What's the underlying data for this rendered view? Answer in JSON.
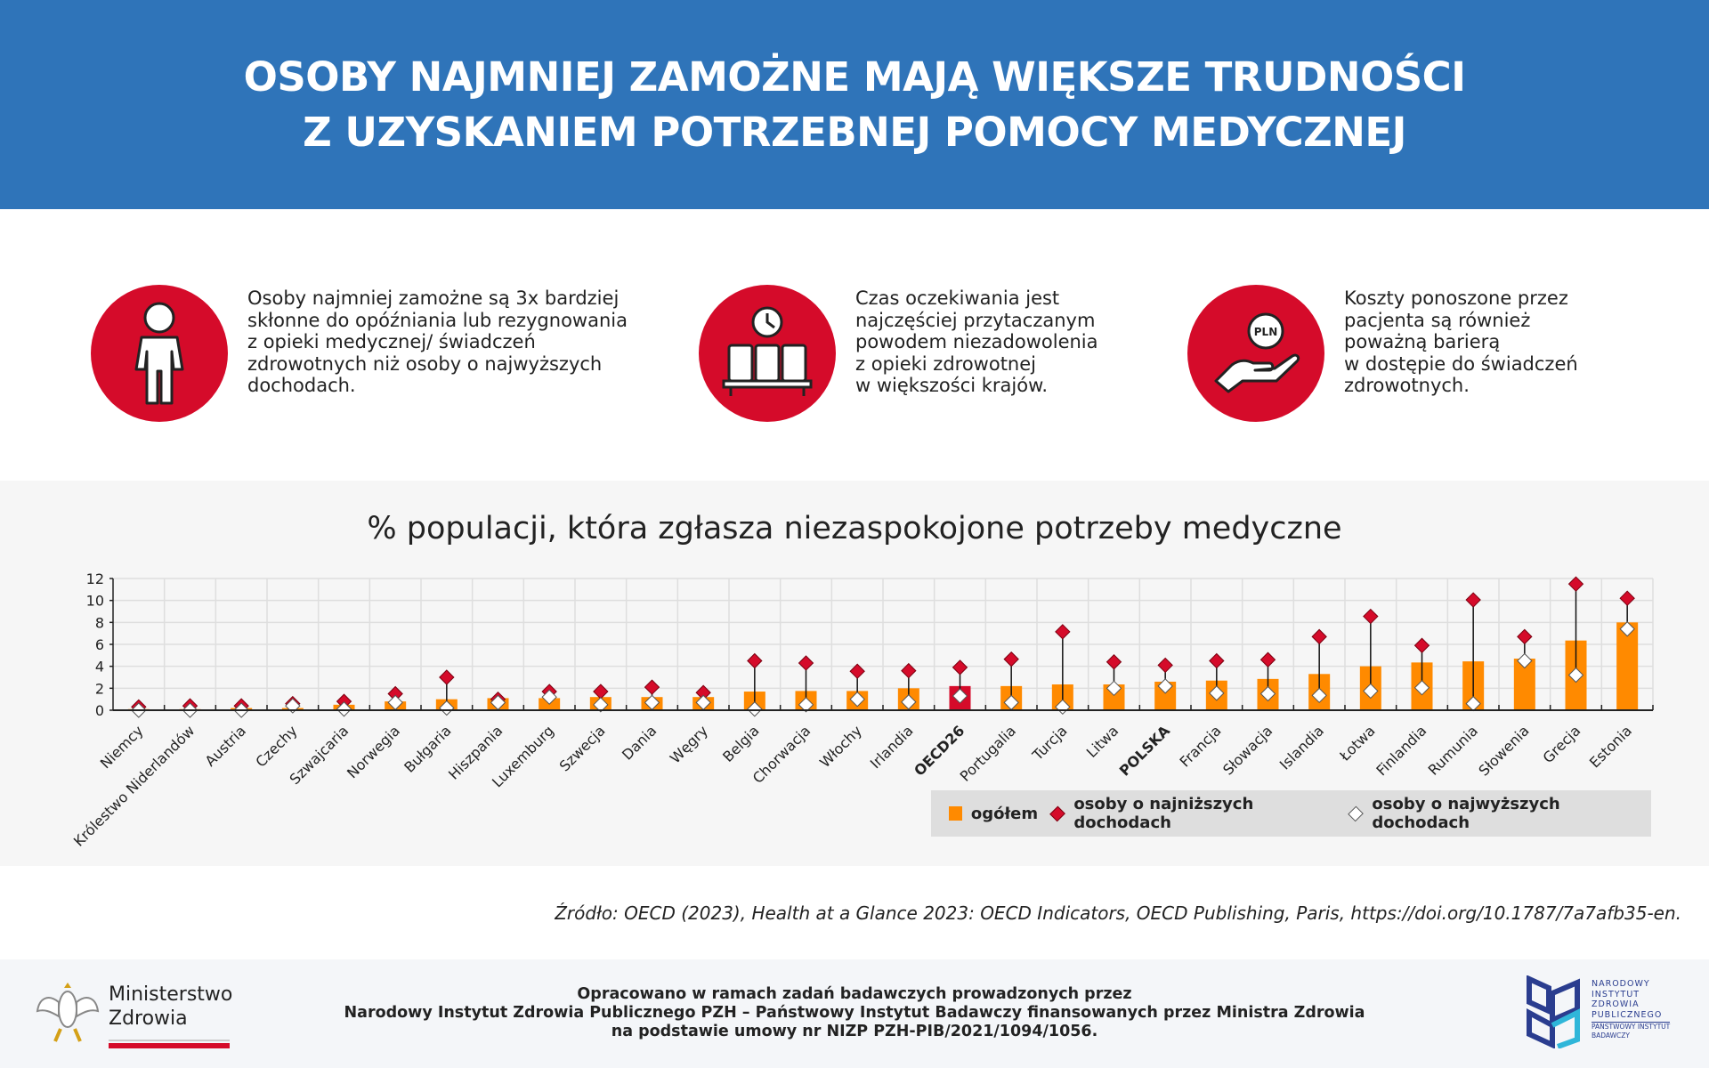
{
  "header": {
    "title_line1": "OSOBY NAJMNIEJ ZAMOŻNE MAJĄ WIĘKSZE TRUDNOŚCI",
    "title_line2": "Z UZYSKANIEM POTRZEBNEJ POMOCY MEDYCZNEJ"
  },
  "facts": [
    {
      "icon": "person-icon",
      "lines": [
        "Osoby najmniej zamożne są 3x bardziej",
        "skłonne do opóźniania lub rezygnowania",
        "z opieki medycznej/ świadczeń",
        "zdrowotnych niż osoby o najwyższych",
        "dochodach."
      ]
    },
    {
      "icon": "waiting-room-clock-icon",
      "lines": [
        "Czas oczekiwania jest",
        "najczęściej przytaczanym",
        "powodem niezadowolenia",
        "z opieki zdrowotnej",
        "w większości krajów."
      ]
    },
    {
      "icon": "hand-coin-icon",
      "coin_label": "PLN",
      "lines": [
        "Koszty ponoszone przez",
        "pacjenta są również",
        "poważną barierą",
        "w dostępie do świadczeń",
        "zdrowotnych."
      ]
    }
  ],
  "colors": {
    "header": "#2f74b9",
    "accent_red": "#d50b2a",
    "bar": "#ff8a00",
    "oecd_bar": "#d50b2a"
  },
  "chart_data": {
    "type": "bar",
    "title": "% populacji, która zgłasza niezaspokojone potrzeby medyczne",
    "xlabel": "",
    "ylabel": "",
    "ylim": [
      0,
      12
    ],
    "yticks": [
      0,
      2,
      4,
      6,
      8,
      10,
      12
    ],
    "grid": true,
    "legend_position": "bottom-right",
    "categories": [
      "Niemcy",
      "Królestwo Niderlandów",
      "Austria",
      "Czechy",
      "Szwajcaria",
      "Norwegia",
      "Bułgaria",
      "Hiszpania",
      "Luxemburg",
      "Szwecja",
      "Dania",
      "Węgry",
      "Belgia",
      "Chorwacja",
      "Włochy",
      "Irlandia",
      "OECD26",
      "Portugalia",
      "Turcja",
      "Litwa",
      "POLSKA",
      "Francja",
      "Słowacja",
      "Islandia",
      "Łotwa",
      "Finlandia",
      "Rumunia",
      "Słowenia",
      "Grecja",
      "Estonia"
    ],
    "highlighted": [
      "OECD26",
      "POLSKA"
    ],
    "series": [
      {
        "name": "ogółem",
        "marker": "bar",
        "values": [
          0.1,
          0.1,
          0.2,
          0.2,
          0.5,
          0.8,
          1.0,
          1.1,
          1.1,
          1.2,
          1.2,
          1.2,
          1.7,
          1.75,
          1.75,
          2.0,
          2.2,
          2.2,
          2.35,
          2.35,
          2.6,
          2.7,
          2.85,
          3.3,
          4.0,
          4.35,
          4.45,
          4.7,
          6.35,
          8.0
        ]
      },
      {
        "name": "osoby o najniższych dochodach",
        "marker": "red-diamond",
        "values": [
          0.3,
          0.4,
          0.4,
          0.6,
          0.8,
          1.5,
          3.0,
          1.0,
          1.7,
          1.7,
          2.1,
          1.6,
          4.5,
          4.3,
          3.55,
          3.6,
          3.9,
          4.65,
          7.15,
          4.4,
          4.1,
          4.5,
          4.6,
          6.7,
          8.55,
          5.9,
          10.05,
          6.7,
          11.5,
          10.2
        ]
      },
      {
        "name": "osoby o najwyższych dochodach",
        "marker": "white-diamond",
        "values": [
          0.0,
          0.0,
          0.0,
          0.4,
          0.1,
          0.7,
          0.2,
          0.7,
          1.2,
          0.5,
          0.7,
          0.7,
          0.1,
          0.5,
          1.0,
          0.75,
          1.3,
          0.7,
          0.3,
          2.0,
          2.2,
          1.55,
          1.5,
          1.35,
          1.75,
          2.05,
          0.6,
          4.5,
          3.2,
          7.4
        ]
      }
    ]
  },
  "source": "Źródło: OECD (2023), Health at a Glance 2023: OECD Indicators, OECD Publishing, Paris, https://doi.org/10.1787/7a7afb35-en.",
  "footer": {
    "lines": [
      "Opracowano w ramach zadań badawczych prowadzonych przez",
      "Narodowy Instytut Zdrowia Publicznego PZH – Państwowy Instytut Badawczy finansowanych przez Ministra Zdrowia",
      "na podstawie umowy nr NIZP PZH-PIB/2021/1094/1056."
    ],
    "ministry_line1": "Ministerstwo",
    "ministry_line2": "Zdrowia",
    "pzh_lines": [
      "NARODOWY",
      "INSTYTUT",
      "ZDROWIA",
      "PUBLICZNEGO",
      "PAŃSTWOWY INSTYTUT",
      "BADAWCZY"
    ]
  }
}
